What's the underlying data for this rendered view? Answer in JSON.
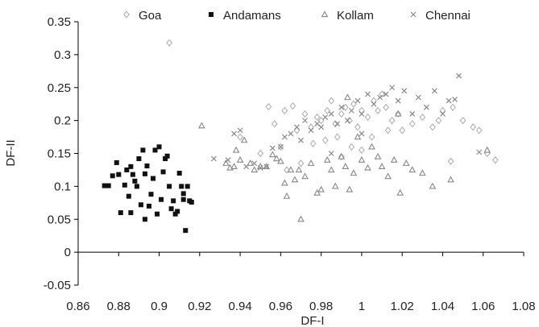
{
  "chart_data": {
    "type": "scatter",
    "title": "",
    "xlabel": "DF-I",
    "ylabel": "DF-II",
    "xlim": [
      0.86,
      1.08
    ],
    "ylim": [
      -0.05,
      0.35
    ],
    "xticks": [
      "0.86",
      "0.88",
      "0.9",
      "0.92",
      "0.94",
      "0.96",
      "0.98",
      "1",
      "1.02",
      "1.04",
      "1.06",
      "1.08"
    ],
    "yticks": [
      "-0.05",
      "0",
      "0.05",
      "0.1",
      "0.15",
      "0.2",
      "0.25",
      "0.3",
      "0.35"
    ],
    "grid": false,
    "legend_position": "top",
    "series": [
      {
        "name": "Goa",
        "marker": "diamond",
        "color": "#aaaaaa",
        "points": [
          [
            0.905,
            0.318
          ],
          [
            0.954,
            0.221
          ],
          [
            0.962,
            0.215
          ],
          [
            0.966,
            0.222
          ],
          [
            0.972,
            0.21
          ],
          [
            0.975,
            0.19
          ],
          [
            0.978,
            0.205
          ],
          [
            0.98,
            0.2
          ],
          [
            0.983,
            0.215
          ],
          [
            0.985,
            0.23
          ],
          [
            0.987,
            0.195
          ],
          [
            0.99,
            0.21
          ],
          [
            0.992,
            0.22
          ],
          [
            0.994,
            0.2
          ],
          [
            0.996,
            0.225
          ],
          [
            0.998,
            0.19
          ],
          [
            1.0,
            0.215
          ],
          [
            1.003,
            0.205
          ],
          [
            1.006,
            0.23
          ],
          [
            1.008,
            0.215
          ],
          [
            1.01,
            0.24
          ],
          [
            1.012,
            0.22
          ],
          [
            1.015,
            0.2
          ],
          [
            1.018,
            0.21
          ],
          [
            1.02,
            0.185
          ],
          [
            1.025,
            0.195
          ],
          [
            1.03,
            0.205
          ],
          [
            1.035,
            0.19
          ],
          [
            1.038,
            0.2
          ],
          [
            1.04,
            0.215
          ],
          [
            1.045,
            0.22
          ],
          [
            1.05,
            0.2
          ],
          [
            1.055,
            0.19
          ],
          [
            1.058,
            0.185
          ],
          [
            1.062,
            0.15
          ],
          [
            1.066,
            0.14
          ],
          [
            0.96,
            0.16
          ],
          [
            0.968,
            0.185
          ],
          [
            0.976,
            0.165
          ],
          [
            0.982,
            0.17
          ],
          [
            0.988,
            0.175
          ],
          [
            0.995,
            0.16
          ],
          [
            1.005,
            0.175
          ],
          [
            1.013,
            0.185
          ],
          [
            0.97,
            0.135
          ],
          [
            0.99,
            0.145
          ],
          [
            1.0,
            0.155
          ],
          [
            0.963,
            0.125
          ],
          [
            0.95,
            0.15
          ],
          [
            1.044,
            0.138
          ],
          [
            0.94,
            0.175
          ],
          [
            0.957,
            0.195
          ]
        ]
      },
      {
        "name": "Andamans",
        "marker": "square",
        "color": "#111111",
        "points": [
          [
            0.873,
            0.101
          ],
          [
            0.875,
            0.101
          ],
          [
            0.877,
            0.116
          ],
          [
            0.879,
            0.136
          ],
          [
            0.88,
            0.118
          ],
          [
            0.881,
            0.06
          ],
          [
            0.883,
            0.102
          ],
          [
            0.884,
            0.125
          ],
          [
            0.885,
            0.085
          ],
          [
            0.886,
            0.13
          ],
          [
            0.887,
            0.118
          ],
          [
            0.888,
            0.108
          ],
          [
            0.889,
            0.1
          ],
          [
            0.89,
            0.142
          ],
          [
            0.891,
            0.072
          ],
          [
            0.892,
            0.155
          ],
          [
            0.893,
            0.119
          ],
          [
            0.894,
            0.131
          ],
          [
            0.895,
            0.07
          ],
          [
            0.896,
            0.088
          ],
          [
            0.897,
            0.112
          ],
          [
            0.898,
            0.155
          ],
          [
            0.899,
            0.058
          ],
          [
            0.9,
            0.16
          ],
          [
            0.901,
            0.08
          ],
          [
            0.902,
            0.122
          ],
          [
            0.903,
            0.142
          ],
          [
            0.904,
            0.146
          ],
          [
            0.905,
            0.1
          ],
          [
            0.906,
            0.066
          ],
          [
            0.907,
            0.078
          ],
          [
            0.908,
            0.058
          ],
          [
            0.909,
            0.062
          ],
          [
            0.91,
            0.12
          ],
          [
            0.911,
            0.1
          ],
          [
            0.912,
            0.089
          ],
          [
            0.913,
            0.033
          ],
          [
            0.914,
            0.1
          ],
          [
            0.915,
            0.078
          ],
          [
            0.916,
            0.076
          ],
          [
            0.893,
            0.05
          ],
          [
            0.886,
            0.06
          ],
          [
            0.912,
            0.08
          ]
        ]
      },
      {
        "name": "Kollam",
        "marker": "triangle",
        "color": "#888888",
        "points": [
          [
            0.921,
            0.192
          ],
          [
            0.933,
            0.135
          ],
          [
            0.935,
            0.128
          ],
          [
            0.937,
            0.13
          ],
          [
            0.938,
            0.155
          ],
          [
            0.94,
            0.14
          ],
          [
            0.942,
            0.17
          ],
          [
            0.945,
            0.135
          ],
          [
            0.947,
            0.125
          ],
          [
            0.95,
            0.13
          ],
          [
            0.953,
            0.13
          ],
          [
            0.956,
            0.148
          ],
          [
            0.958,
            0.142
          ],
          [
            0.96,
            0.138
          ],
          [
            0.962,
            0.105
          ],
          [
            0.963,
            0.085
          ],
          [
            0.965,
            0.125
          ],
          [
            0.967,
            0.11
          ],
          [
            0.969,
            0.125
          ],
          [
            0.97,
            0.05
          ],
          [
            0.972,
            0.115
          ],
          [
            0.975,
            0.135
          ],
          [
            0.978,
            0.09
          ],
          [
            0.98,
            0.095
          ],
          [
            0.983,
            0.14
          ],
          [
            0.985,
            0.125
          ],
          [
            0.987,
            0.1
          ],
          [
            0.99,
            0.145
          ],
          [
            0.992,
            0.13
          ],
          [
            0.994,
            0.095
          ],
          [
            0.996,
            0.12
          ],
          [
            0.998,
            0.175
          ],
          [
            1.0,
            0.14
          ],
          [
            1.003,
            0.128
          ],
          [
            1.005,
            0.16
          ],
          [
            1.008,
            0.145
          ],
          [
            1.01,
            0.13
          ],
          [
            1.013,
            0.115
          ],
          [
            1.016,
            0.14
          ],
          [
            1.019,
            0.09
          ],
          [
            1.022,
            0.135
          ],
          [
            1.025,
            0.125
          ],
          [
            1.03,
            0.12
          ],
          [
            1.035,
            0.1
          ],
          [
            1.044,
            0.11
          ],
          [
            1.062,
            0.155
          ],
          [
            0.993,
            0.235
          ],
          [
            1.018,
            0.21
          ]
        ]
      },
      {
        "name": "Chennai",
        "marker": "x",
        "color": "#888888",
        "points": [
          [
            0.927,
            0.142
          ],
          [
            0.934,
            0.14
          ],
          [
            0.937,
            0.18
          ],
          [
            0.94,
            0.185
          ],
          [
            0.943,
            0.13
          ],
          [
            0.947,
            0.135
          ],
          [
            0.95,
            0.128
          ],
          [
            0.953,
            0.13
          ],
          [
            0.956,
            0.158
          ],
          [
            0.96,
            0.16
          ],
          [
            0.962,
            0.175
          ],
          [
            0.965,
            0.18
          ],
          [
            0.968,
            0.19
          ],
          [
            0.97,
            0.17
          ],
          [
            0.972,
            0.2
          ],
          [
            0.975,
            0.185
          ],
          [
            0.978,
            0.195
          ],
          [
            0.98,
            0.19
          ],
          [
            0.982,
            0.205
          ],
          [
            0.985,
            0.21
          ],
          [
            0.988,
            0.195
          ],
          [
            0.99,
            0.22
          ],
          [
            0.993,
            0.2
          ],
          [
            0.995,
            0.215
          ],
          [
            0.998,
            0.23
          ],
          [
            1.0,
            0.21
          ],
          [
            1.003,
            0.24
          ],
          [
            1.006,
            0.225
          ],
          [
            1.009,
            0.235
          ],
          [
            1.012,
            0.24
          ],
          [
            1.015,
            0.25
          ],
          [
            1.018,
            0.23
          ],
          [
            1.021,
            0.245
          ],
          [
            1.025,
            0.21
          ],
          [
            1.028,
            0.235
          ],
          [
            1.032,
            0.22
          ],
          [
            1.036,
            0.245
          ],
          [
            1.04,
            0.21
          ],
          [
            1.043,
            0.23
          ],
          [
            1.046,
            0.232
          ],
          [
            1.048,
            0.268
          ],
          [
            1.058,
            0.152
          ],
          [
            0.985,
            0.15
          ],
          [
            1.0,
            0.18
          ]
        ]
      }
    ]
  }
}
